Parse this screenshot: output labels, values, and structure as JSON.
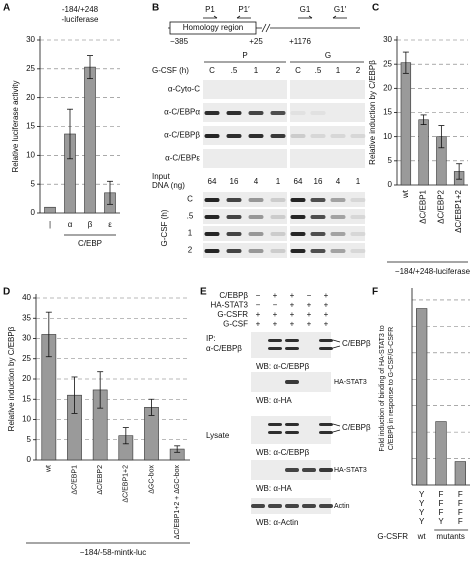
{
  "chart_data": [
    {
      "type": "bar",
      "panel": "A",
      "title": [
        "-184/+248",
        "-luciferase"
      ],
      "y_label": "Relative luciferase activity",
      "categories": [
        "|",
        "α",
        "β",
        "ε"
      ],
      "values": [
        1,
        13.7,
        25.3,
        3.5
      ],
      "errors": [
        null,
        4.3,
        2,
        2
      ],
      "ylim": [
        0,
        30
      ],
      "yticks": [
        0,
        5,
        10,
        15,
        20,
        25,
        30
      ],
      "grid": true,
      "group_label": "C/EBP",
      "color": "#9a9a9a"
    },
    {
      "type": "bar",
      "panel": "C",
      "y_label": "Relative induction by C/EBPβ",
      "categories": [
        "wt",
        "ΔC/EBP1",
        "ΔC/EBP2",
        "ΔC/EBP1+2"
      ],
      "values": [
        25.3,
        13.5,
        10,
        2.8
      ],
      "errors": [
        2.2,
        1,
        2.3,
        1.6
      ],
      "ylim": [
        0,
        30
      ],
      "yticks": [
        0,
        5,
        10,
        15,
        20,
        25,
        30
      ],
      "grid": true,
      "footer": "−184/+248-luciferase",
      "color": "#9a9a9a"
    },
    {
      "type": "bar",
      "panel": "D",
      "y_label": "Relative induction by C/EBPβ",
      "categories": [
        "wt",
        "ΔC/EBP1",
        "ΔC/EBP2",
        "ΔC/EBP1+2",
        "ΔGC-box",
        "ΔC/EBP1+2 + ΔGC-box"
      ],
      "values": [
        31,
        16,
        17.3,
        6,
        13,
        2.7
      ],
      "errors": [
        5.5,
        4.5,
        4.5,
        2,
        2,
        0.8
      ],
      "ylim": [
        0,
        40
      ],
      "yticks": [
        0,
        5,
        10,
        15,
        20,
        25,
        30,
        35,
        40
      ],
      "grid": true,
      "footer": "−184/-58-mintk-luc",
      "color": "#9a9a9a"
    },
    {
      "type": "bar",
      "panel": "F",
      "y_label": [
        "Fold induction of binding of HA-STAT3 to",
        "C/EBPβ in response to G-CSF/G-CSFR"
      ],
      "categories": [
        [
          "Y",
          "Y",
          "Y",
          "Y"
        ],
        [
          "F",
          "F",
          "F",
          "Y"
        ],
        [
          "F",
          "F",
          "F",
          "F"
        ]
      ],
      "values": [
        6.4,
        2.3,
        0.85
      ],
      "ylim": [
        0,
        7
      ],
      "grid": true,
      "group_labels": [
        "wt",
        "mutants"
      ],
      "row_label": "G-CSFR",
      "color": "#9a9a9a"
    }
  ],
  "panel_b": {
    "panel": "B",
    "primers": [
      "P1",
      "P1′",
      "G1",
      "G1′"
    ],
    "region": "Homology region",
    "coordinates": [
      "−385",
      "+25",
      "+1176"
    ],
    "groups": [
      "P",
      "G"
    ],
    "time_label": "G-CSF (h)",
    "times": [
      "C",
      ".5",
      "1",
      "2",
      "C",
      ".5",
      "1",
      "2"
    ],
    "antibodies": [
      "α-Cyto-C",
      "α-C/EBPα",
      "α-C/EBPβ",
      "α-C/EBPε"
    ],
    "input_label": [
      "Input",
      "DNA (ng)"
    ],
    "input_amounts": [
      "64",
      "16",
      "4",
      "1",
      "64",
      "16",
      "4",
      "1"
    ],
    "pcr_time_label": "G-CSF (h)",
    "pcr_times": [
      "C",
      ".5",
      "1",
      "2"
    ]
  },
  "panel_e": {
    "panel": "E",
    "conditions": [
      {
        "label": "C/EBPβ",
        "signs": [
          "−",
          "+",
          "+",
          "−",
          "+"
        ]
      },
      {
        "label": "HA-STAT3",
        "signs": [
          "−",
          "−",
          "+",
          "+",
          "+"
        ]
      },
      {
        "label": "G-CSFR",
        "signs": [
          "+",
          "+",
          "+",
          "+",
          "+"
        ]
      },
      {
        "label": "G-CSF",
        "signs": [
          "+",
          "+",
          "+",
          "+",
          "+"
        ]
      }
    ],
    "ip_label": [
      "IP:",
      "α-C/EBPβ"
    ],
    "lysate_label": "Lysate",
    "blots": [
      {
        "wb": "WB: α-C/EBPβ",
        "target": "C/EBPβ"
      },
      {
        "wb": "WB: α-HA",
        "target": "HA-STAT3"
      },
      {
        "wb": "WB: α-C/EBPβ",
        "target": "C/EBPβ"
      },
      {
        "wb": "WB: α-HA",
        "target": "HA-STAT3"
      },
      {
        "wb": "WB: α-Actin",
        "target": "Actin"
      }
    ]
  }
}
